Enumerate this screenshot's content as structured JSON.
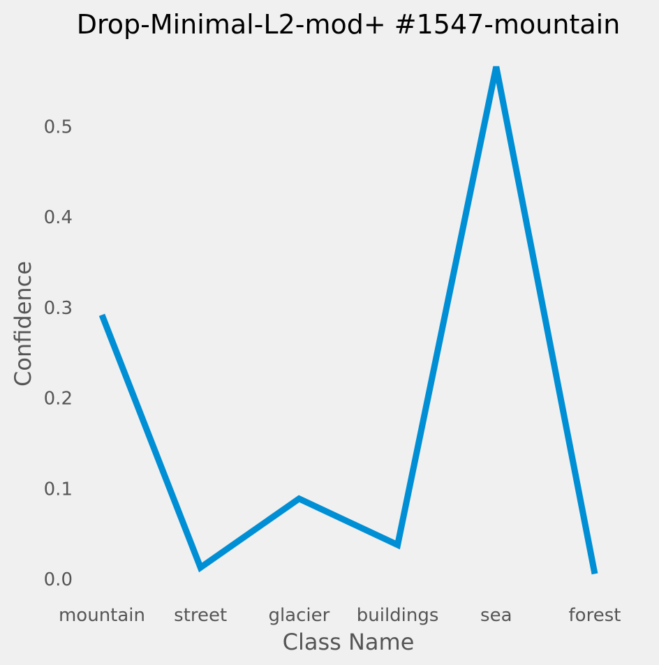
{
  "chart_data": {
    "type": "line",
    "title": "Drop-Minimal-L2-mod+ #1547-mountain",
    "xlabel": "Class Name",
    "ylabel": "Confidence",
    "categories": [
      "mountain",
      "street",
      "glacier",
      "buildings",
      "sea",
      "forest"
    ],
    "values": [
      0.292,
      0.013,
      0.089,
      0.038,
      0.566,
      0.006
    ],
    "yticks": [
      0.0,
      0.1,
      0.2,
      0.3,
      0.4,
      0.5
    ],
    "ytick_labels": [
      "0.0",
      "0.1",
      "0.2",
      "0.3",
      "0.4",
      "0.5"
    ],
    "ylim": [
      -0.023,
      0.595
    ],
    "grid": false,
    "line_color": "#008fd5",
    "background_color": "#f0f0f0"
  }
}
